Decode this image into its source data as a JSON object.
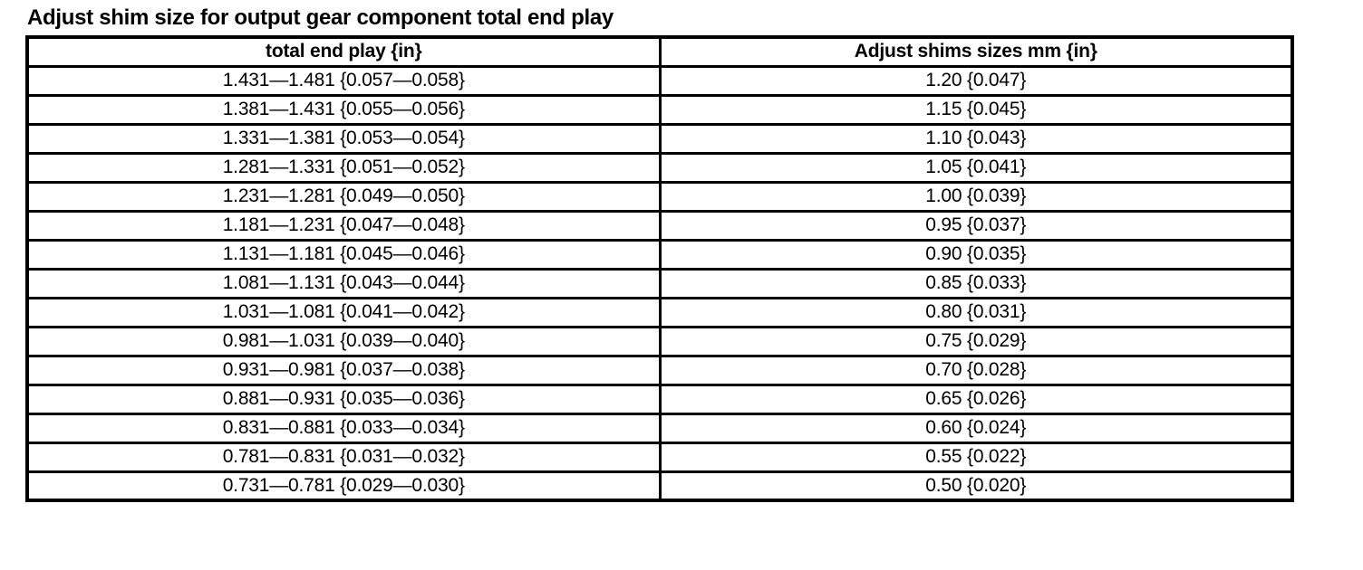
{
  "page": {
    "title": "Adjust shim size for output gear component total end play"
  },
  "colors": {
    "background": "#ffffff",
    "text": "#000000",
    "border": "#000000"
  },
  "table": {
    "columns": [
      "total end play {in}",
      "Adjust shims sizes mm {in}"
    ],
    "rows": [
      {
        "total_end_play": "1.431—1.481 {0.057—0.058}",
        "shim_size": "1.20 {0.047}"
      },
      {
        "total_end_play": "1.381—1.431 {0.055—0.056}",
        "shim_size": "1.15 {0.045}"
      },
      {
        "total_end_play": "1.331—1.381 {0.053—0.054}",
        "shim_size": "1.10 {0.043}"
      },
      {
        "total_end_play": "1.281—1.331 {0.051—0.052}",
        "shim_size": "1.05 {0.041}"
      },
      {
        "total_end_play": "1.231—1.281 {0.049—0.050}",
        "shim_size": "1.00 {0.039}"
      },
      {
        "total_end_play": "1.181—1.231 {0.047—0.048}",
        "shim_size": "0.95 {0.037}"
      },
      {
        "total_end_play": "1.131—1.181 {0.045—0.046}",
        "shim_size": "0.90 {0.035}"
      },
      {
        "total_end_play": "1.081—1.131 {0.043—0.044}",
        "shim_size": "0.85 {0.033}"
      },
      {
        "total_end_play": "1.031—1.081 {0.041—0.042}",
        "shim_size": "0.80 {0.031}"
      },
      {
        "total_end_play": "0.981—1.031 {0.039—0.040}",
        "shim_size": "0.75 {0.029}"
      },
      {
        "total_end_play": "0.931—0.981 {0.037—0.038}",
        "shim_size": "0.70 {0.028}"
      },
      {
        "total_end_play": "0.881—0.931 {0.035—0.036}",
        "shim_size": "0.65 {0.026}"
      },
      {
        "total_end_play": "0.831—0.881 {0.033—0.034}",
        "shim_size": "0.60 {0.024}"
      },
      {
        "total_end_play": "0.781—0.831 {0.031—0.032}",
        "shim_size": "0.55 {0.022}"
      },
      {
        "total_end_play": "0.731—0.781 {0.029—0.030}",
        "shim_size": "0.50 {0.020}"
      }
    ]
  }
}
